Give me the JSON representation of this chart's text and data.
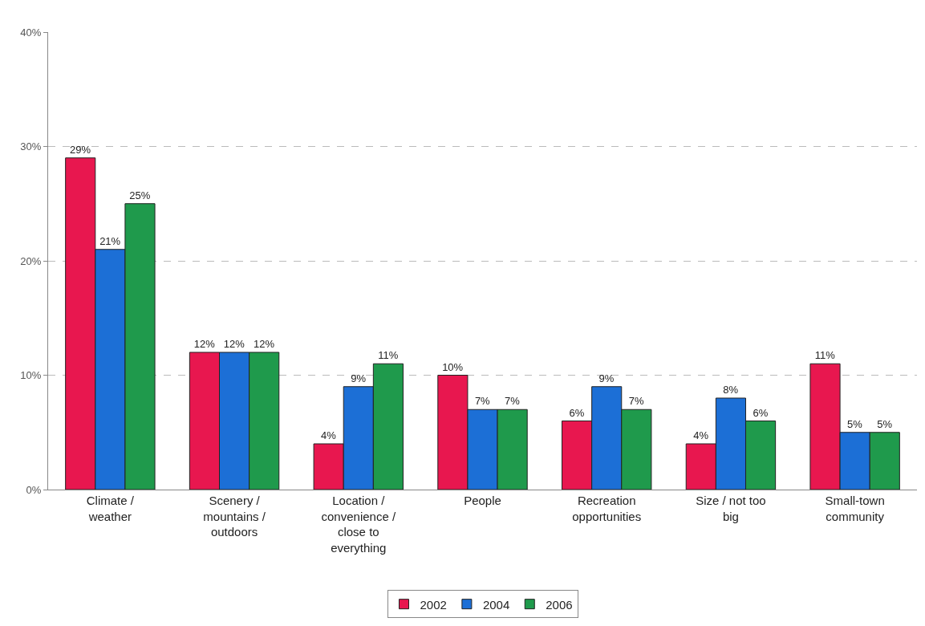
{
  "chart_data": {
    "type": "bar",
    "categories": [
      "Climate / weather",
      "Scenery / mountains / outdoors",
      "Location / convenience / close to everything",
      "People",
      "Recreation opportunities",
      "Size / not too big",
      "Small-town community"
    ],
    "series": [
      {
        "name": "2002",
        "color": "#e8174f",
        "values": [
          29,
          12,
          4,
          10,
          6,
          4,
          11
        ],
        "value_labels": [
          "29%",
          "12%",
          "4%",
          "10%",
          "6%",
          "4%",
          "11%"
        ]
      },
      {
        "name": "2004",
        "color": "#1c6fd6",
        "values": [
          21,
          12,
          9,
          7,
          9,
          8,
          5
        ],
        "value_labels": [
          "21%",
          "12%",
          "9%",
          "7%",
          "9%",
          "8%",
          "5%"
        ]
      },
      {
        "name": "2006",
        "color": "#1f9a4c",
        "values": [
          25,
          12,
          11,
          7,
          7,
          6,
          5
        ],
        "value_labels": [
          "25%",
          "12%",
          "11%",
          "7%",
          "7%",
          "6%",
          "5%"
        ]
      }
    ],
    "ylim": [
      0,
      40
    ],
    "yticks": [
      {
        "value": 0,
        "label": "0%"
      },
      {
        "value": 10,
        "label": "10%"
      },
      {
        "value": 20,
        "label": "20%"
      },
      {
        "value": 30,
        "label": "30%"
      },
      {
        "value": 40,
        "label": "40%"
      }
    ],
    "grid": "y",
    "legend": "bottom"
  }
}
